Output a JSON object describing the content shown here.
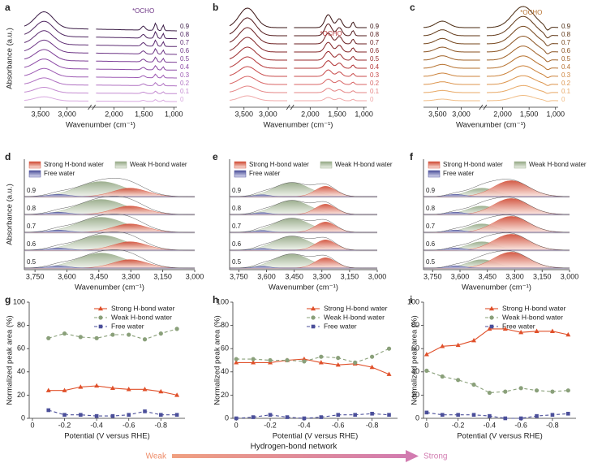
{
  "chart_data": [
    {
      "type": "spectra",
      "label": "a",
      "ylabel": "Absorbance (a.u.)",
      "xlabel": "Wavenumber (cm⁻¹)",
      "annotation": "*OCHO",
      "xlim": [
        3800,
        950
      ],
      "xbreak": [
        2600,
        2300
      ],
      "xticks": [
        {
          "value": 3500,
          "label": "3,500"
        },
        {
          "value": 3000,
          "label": "3,000"
        },
        {
          "value": 2000,
          "label": "2,000"
        },
        {
          "value": 1500,
          "label": "1,500"
        },
        {
          "value": 1000,
          "label": "1,000"
        }
      ],
      "curves": [
        {
          "label": "0.9",
          "color": "#3b1c46"
        },
        {
          "label": "0.8",
          "color": "#4e2560"
        },
        {
          "label": "0.7",
          "color": "#5e2d73"
        },
        {
          "label": "0.6",
          "color": "#6d3585"
        },
        {
          "label": "0.5",
          "color": "#7d3e96"
        },
        {
          "label": "0.4",
          "color": "#8d4aa6"
        },
        {
          "label": "0.3",
          "color": "#9d5ab3"
        },
        {
          "label": "0.2",
          "color": "#b071c2"
        },
        {
          "label": "0.1",
          "color": "#c48bd1"
        },
        {
          "label": "0",
          "color": "#d8a8e0"
        }
      ]
    },
    {
      "type": "spectra",
      "label": "b",
      "xlabel": "Wavenumber (cm⁻¹)",
      "annotation": "*OCHO",
      "xlim": [
        3800,
        950
      ],
      "xbreak": [
        2600,
        2300
      ],
      "xticks": [
        {
          "value": 3500,
          "label": "3,500"
        },
        {
          "value": 3000,
          "label": "3,000"
        },
        {
          "value": 2000,
          "label": "2,000"
        },
        {
          "value": 1500,
          "label": "1,500"
        },
        {
          "value": 1000,
          "label": "1,000"
        }
      ],
      "curves": [
        {
          "label": "0.9",
          "color": "#3a1414"
        },
        {
          "label": "0.8",
          "color": "#52181a"
        },
        {
          "label": "0.7",
          "color": "#6a1d1f"
        },
        {
          "label": "0.6",
          "color": "#822325"
        },
        {
          "label": "0.5",
          "color": "#9a2a2c"
        },
        {
          "label": "0.4",
          "color": "#b33436"
        },
        {
          "label": "0.3",
          "color": "#c84a4a"
        },
        {
          "label": "0.2",
          "color": "#d86464"
        },
        {
          "label": "0.1",
          "color": "#e58585"
        },
        {
          "label": "0",
          "color": "#f0a8a8"
        }
      ]
    },
    {
      "type": "spectra",
      "label": "c",
      "xlabel": "Wavenumber (cm⁻¹)",
      "annotation": "*OCHO",
      "xlim": [
        3800,
        950
      ],
      "xbreak": [
        2600,
        2300
      ],
      "xticks": [
        {
          "value": 3500,
          "label": "3,500"
        },
        {
          "value": 3000,
          "label": "3,000"
        },
        {
          "value": 2000,
          "label": "2,000"
        },
        {
          "value": 1500,
          "label": "1,500"
        },
        {
          "value": 1000,
          "label": "1,000"
        }
      ],
      "curves": [
        {
          "label": "0.9",
          "color": "#4a2a10"
        },
        {
          "label": "0.8",
          "color": "#5f3615"
        },
        {
          "label": "0.7",
          "color": "#74441a"
        },
        {
          "label": "0.6",
          "color": "#8a5220"
        },
        {
          "label": "0.5",
          "color": "#a06126"
        },
        {
          "label": "0.4",
          "color": "#b6712e"
        },
        {
          "label": "0.3",
          "color": "#cc823a"
        },
        {
          "label": "0.2",
          "color": "#dc944c"
        },
        {
          "label": "0.1",
          "color": "#e8a865"
        },
        {
          "label": "0",
          "color": "#f0bd86"
        }
      ]
    },
    {
      "type": "deconvolution",
      "label": "d",
      "ylabel": "Absorbance (a.u.)",
      "xlabel": "Wavenumber (cm⁻¹)",
      "xlim": [
        3800,
        3000
      ],
      "xticks": [
        {
          "value": 3750,
          "label": "3,750"
        },
        {
          "value": 3600,
          "label": "3,600"
        },
        {
          "value": 3450,
          "label": "3,450"
        },
        {
          "value": 3300,
          "label": "3,300"
        },
        {
          "value": 3150,
          "label": "3,150"
        },
        {
          "value": 3000,
          "label": "3,000"
        }
      ],
      "components": [
        {
          "name": "Strong H-bond water",
          "color": "#d9573f"
        },
        {
          "name": "Weak H-bond water",
          "color": "#9aae8a"
        },
        {
          "name": "Free water",
          "color": "#4b4f9a"
        }
      ],
      "stack_labels": [
        "0.9",
        "0.8",
        "0.7",
        "0.6",
        "0.5"
      ]
    },
    {
      "type": "deconvolution",
      "label": "e",
      "xlabel": "Wavenumber (cm⁻¹)",
      "xlim": [
        3800,
        3000
      ],
      "xticks": [
        {
          "value": 3750,
          "label": "3,750"
        },
        {
          "value": 3600,
          "label": "3,600"
        },
        {
          "value": 3450,
          "label": "3,450"
        },
        {
          "value": 3300,
          "label": "3,300"
        },
        {
          "value": 3150,
          "label": "3,150"
        },
        {
          "value": 3000,
          "label": "3,000"
        }
      ],
      "components": [
        {
          "name": "Strong H-bond water",
          "color": "#d9573f"
        },
        {
          "name": "Weak H-bond water",
          "color": "#9aae8a"
        },
        {
          "name": "Free water",
          "color": "#4b4f9a"
        }
      ],
      "stack_labels": [
        "0.9",
        "0.8",
        "0.7",
        "0.6",
        "0.5"
      ]
    },
    {
      "type": "deconvolution",
      "label": "f",
      "xlabel": "Wavenumber (cm⁻¹)",
      "xlim": [
        3800,
        3000
      ],
      "xticks": [
        {
          "value": 3750,
          "label": "3,750"
        },
        {
          "value": 3600,
          "label": "3,600"
        },
        {
          "value": 3450,
          "label": "3,450"
        },
        {
          "value": 3300,
          "label": "3,300"
        },
        {
          "value": 3150,
          "label": "3,150"
        },
        {
          "value": 3000,
          "label": "3,000"
        }
      ],
      "components": [
        {
          "name": "Strong H-bond water",
          "color": "#d9573f"
        },
        {
          "name": "Weak H-bond water",
          "color": "#9aae8a"
        },
        {
          "name": "Free water",
          "color": "#4b4f9a"
        }
      ],
      "stack_labels": [
        "0.9",
        "0.8",
        "0.7",
        "0.6",
        "0.5"
      ]
    },
    {
      "type": "line",
      "label": "g",
      "ylabel": "Normalized peak area (%)",
      "xlabel": "Potential (V versus RHE)",
      "xlim": [
        0.02,
        -0.95
      ],
      "xticks": [
        0,
        -0.2,
        -0.4,
        -0.6,
        -0.8
      ],
      "ylim": [
        0,
        100
      ],
      "yticks": [
        0,
        20,
        40,
        60,
        80,
        100
      ],
      "x": [
        -0.1,
        -0.2,
        -0.3,
        -0.4,
        -0.5,
        -0.6,
        -0.7,
        -0.8,
        -0.9
      ],
      "series": [
        {
          "name": "Strong H-bond water",
          "color": "#e0502a",
          "marker": "triangle",
          "linestyle": "solid",
          "values": [
            24,
            24,
            27,
            28,
            26,
            25,
            25,
            23,
            20
          ]
        },
        {
          "name": "Weak H-bond water",
          "color": "#8aa07a",
          "marker": "circle",
          "linestyle": "dashed",
          "values": [
            69,
            73,
            70,
            69,
            72,
            72,
            68,
            73,
            77
          ]
        },
        {
          "name": "Free water",
          "color": "#4b4f9a",
          "marker": "square",
          "linestyle": "dashed",
          "values": [
            7,
            3,
            3,
            2,
            2,
            3,
            6,
            3,
            3
          ]
        }
      ]
    },
    {
      "type": "line",
      "label": "h",
      "ylabel": "Normalized peak area (%)",
      "xlabel": "Potential (V versus RHE)",
      "xlim": [
        0.02,
        -0.95
      ],
      "xticks": [
        0,
        -0.2,
        -0.4,
        -0.6,
        -0.8
      ],
      "ylim": [
        0,
        100
      ],
      "yticks": [
        0,
        20,
        40,
        60,
        80,
        100
      ],
      "x": [
        0,
        -0.1,
        -0.2,
        -0.3,
        -0.4,
        -0.5,
        -0.6,
        -0.7,
        -0.8,
        -0.9
      ],
      "series": [
        {
          "name": "Strong H-bond water",
          "color": "#e0502a",
          "marker": "triangle",
          "linestyle": "solid",
          "values": [
            48,
            48,
            48,
            50,
            51,
            48,
            46,
            47,
            44,
            38
          ]
        },
        {
          "name": "Weak H-bond water",
          "color": "#8aa07a",
          "marker": "circle",
          "linestyle": "dashed",
          "values": [
            51,
            51,
            50,
            50,
            49,
            53,
            52,
            48,
            53,
            60
          ]
        },
        {
          "name": "Free water",
          "color": "#4b4f9a",
          "marker": "square",
          "linestyle": "dashed",
          "values": [
            0,
            1,
            3,
            1,
            0,
            1,
            3,
            3,
            4,
            3
          ]
        }
      ]
    },
    {
      "type": "line",
      "label": "i",
      "ylabel": "Normalized peak area (%)",
      "xlabel": "Potential (V versus RHE)",
      "xlim": [
        0.02,
        -0.95
      ],
      "xticks": [
        0,
        -0.2,
        -0.4,
        -0.6,
        -0.8
      ],
      "ylim": [
        0,
        100
      ],
      "yticks": [
        0,
        20,
        40,
        60,
        80,
        100
      ],
      "x": [
        0,
        -0.1,
        -0.2,
        -0.3,
        -0.4,
        -0.5,
        -0.6,
        -0.7,
        -0.8,
        -0.9
      ],
      "series": [
        {
          "name": "Strong H-bond water",
          "color": "#e0502a",
          "marker": "triangle",
          "linestyle": "solid",
          "values": [
            55,
            62,
            63,
            67,
            77,
            77,
            74,
            75,
            75,
            72
          ]
        },
        {
          "name": "Weak H-bond water",
          "color": "#8aa07a",
          "marker": "circle",
          "linestyle": "dashed",
          "values": [
            41,
            36,
            33,
            29,
            22,
            23,
            26,
            24,
            23,
            24
          ]
        },
        {
          "name": "Free water",
          "color": "#4b4f9a",
          "marker": "square",
          "linestyle": "dashed",
          "values": [
            5,
            3,
            3,
            3,
            2,
            0,
            0,
            2,
            3,
            4
          ]
        }
      ]
    }
  ],
  "footer": {
    "weak": "Weak",
    "title": "Hydrogen-bond network",
    "strong": "Strong"
  }
}
